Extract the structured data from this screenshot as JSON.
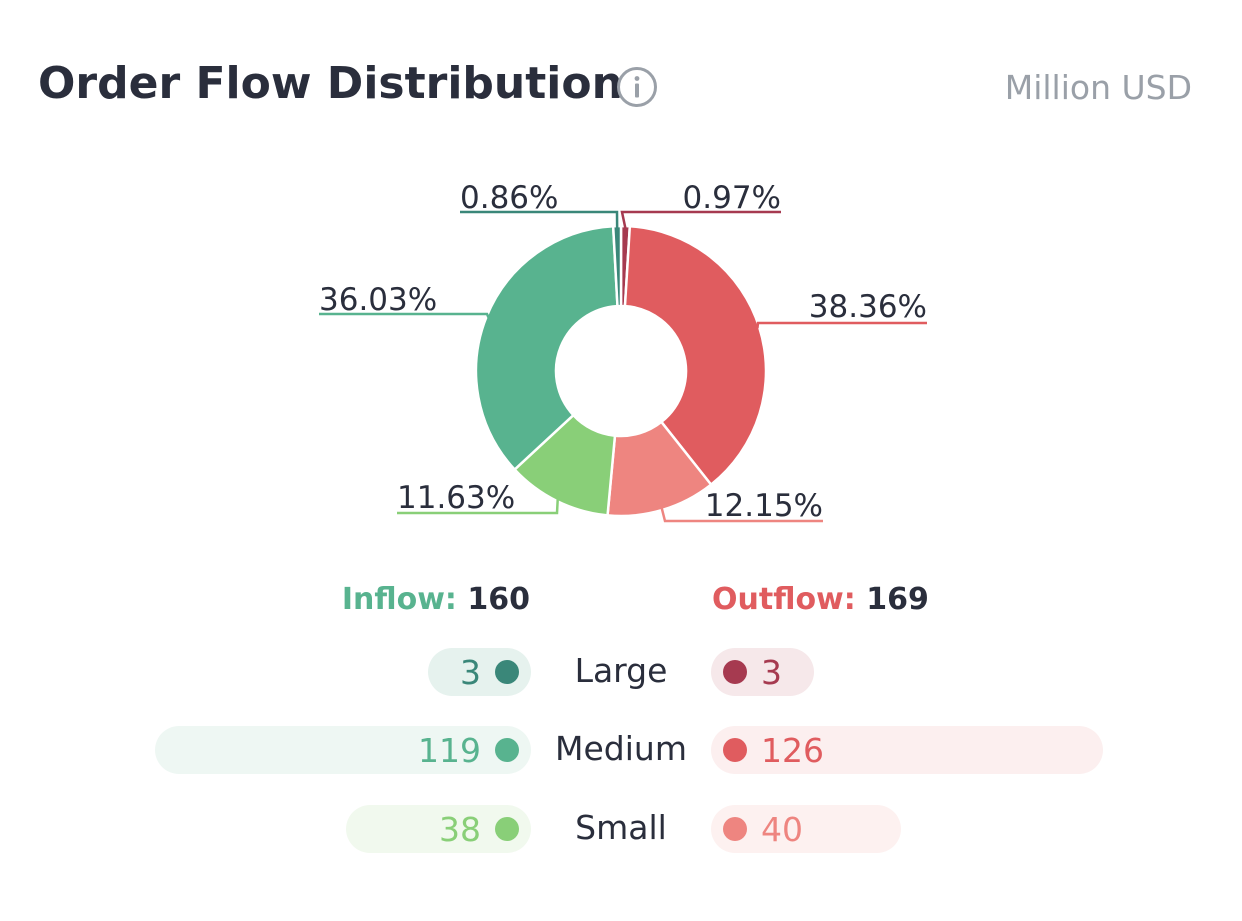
{
  "header": {
    "title": "Order Flow Distribution",
    "unit": "Million USD",
    "info_icon": "info-icon"
  },
  "chart_data": {
    "type": "pie",
    "donut": true,
    "slices": [
      {
        "label": "Outflow Large",
        "value": 0.97,
        "display": "0.97%",
        "color": "#a63a50"
      },
      {
        "label": "Outflow Medium",
        "value": 38.36,
        "display": "38.36%",
        "color": "#e05c5f"
      },
      {
        "label": "Outflow Small",
        "value": 12.15,
        "display": "12.15%",
        "color": "#ee8580"
      },
      {
        "label": "Inflow Small",
        "value": 11.63,
        "display": "11.63%",
        "color": "#89cf78"
      },
      {
        "label": "Inflow Medium",
        "value": 36.03,
        "display": "36.03%",
        "color": "#58b38f"
      },
      {
        "label": "Inflow Large",
        "value": 0.86,
        "display": "0.86%",
        "color": "#3a8779"
      }
    ]
  },
  "summary": {
    "inflow_label": "Inflow:",
    "inflow_total": "160",
    "outflow_label": "Outflow:",
    "outflow_total": "169",
    "rows": [
      {
        "label": "Large",
        "inflow": 3,
        "outflow": 3,
        "in_color": "#3a8779",
        "in_bg": "#e6f2ee",
        "out_color": "#a63a50",
        "out_bg": "#f6e8ea"
      },
      {
        "label": "Medium",
        "inflow": 119,
        "outflow": 126,
        "in_color": "#58b38f",
        "in_bg": "#eef7f3",
        "out_color": "#e05c5f",
        "out_bg": "#fcefef"
      },
      {
        "label": "Small",
        "inflow": 38,
        "outflow": 40,
        "in_color": "#89cf78",
        "in_bg": "#f1f9ee",
        "out_color": "#ee8580",
        "out_bg": "#fdf1f0"
      }
    ]
  }
}
